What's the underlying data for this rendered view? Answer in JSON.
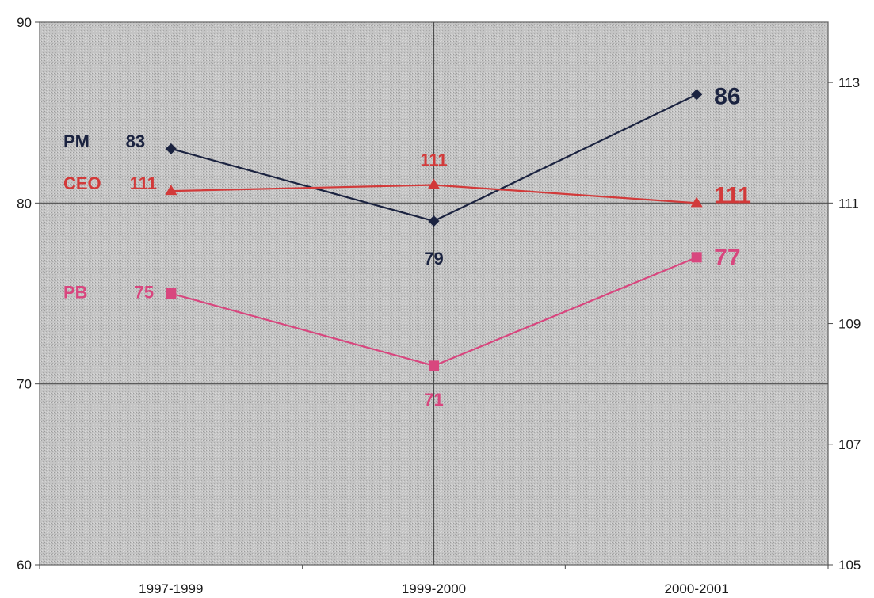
{
  "chart_data": {
    "type": "line",
    "title": "",
    "xlabel": "",
    "ylabel": "",
    "categories": [
      "1997-1999",
      "1999-2000",
      "2000-2001"
    ],
    "y_left": {
      "ylim": [
        60,
        90
      ],
      "ticks": [
        60,
        70,
        80,
        90
      ]
    },
    "y_right": {
      "ylim": [
        105,
        114
      ],
      "ticks": [
        105,
        107,
        109,
        111,
        113
      ]
    },
    "grid": true,
    "series": [
      {
        "name": "PM",
        "axis": "left",
        "marker": "diamond",
        "color": "#1b2340",
        "values": [
          83,
          79,
          86
        ],
        "labels": [
          "83",
          "79",
          "86"
        ]
      },
      {
        "name": "CEO",
        "axis": "right",
        "marker": "triangle",
        "color": "#d23a3a",
        "values": [
          111.2,
          111.3,
          111
        ],
        "labels": [
          "111",
          "111",
          "111"
        ]
      },
      {
        "name": "PB",
        "axis": "left",
        "marker": "square",
        "color": "#d8467e",
        "values": [
          75,
          71,
          77
        ],
        "labels": [
          "75",
          "71",
          "77"
        ]
      }
    ]
  }
}
